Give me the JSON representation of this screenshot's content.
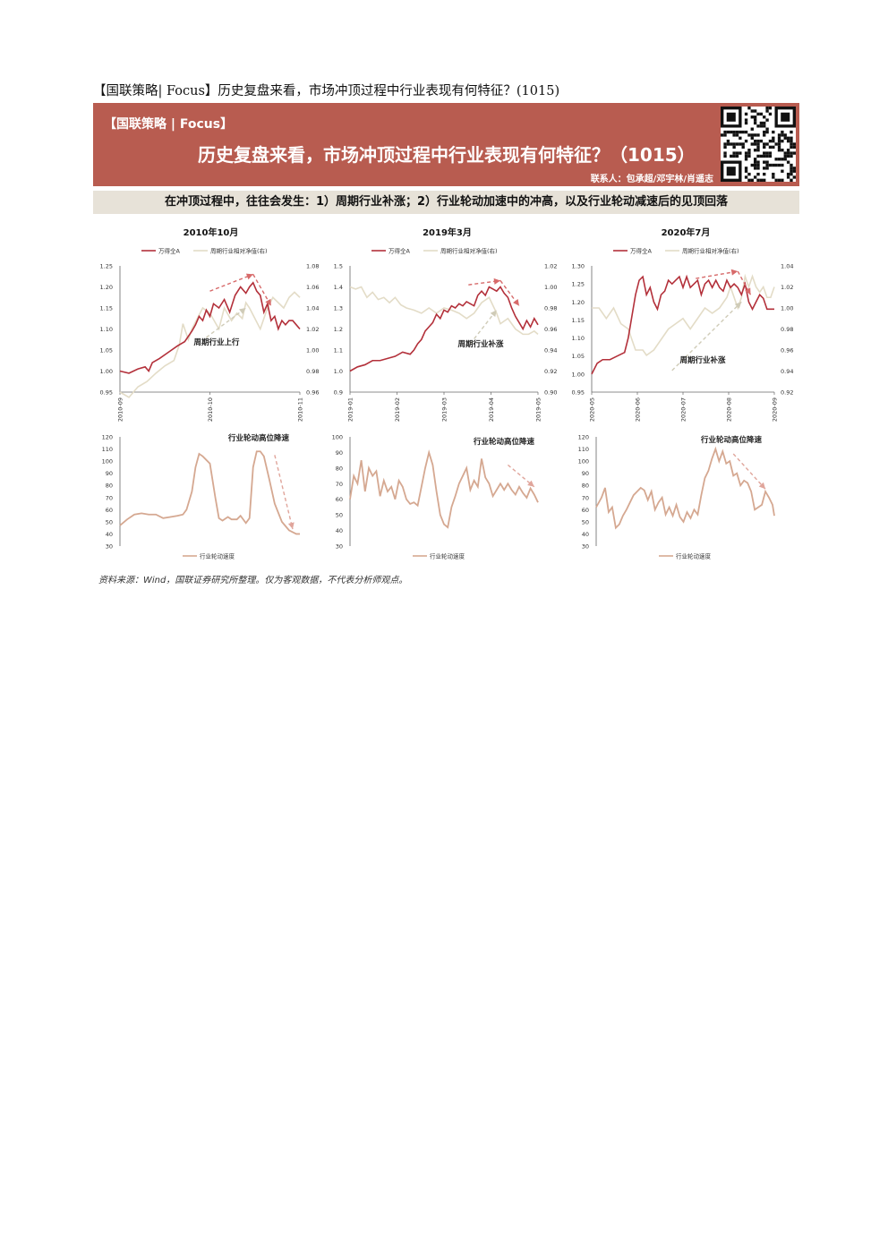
{
  "doc_title": "【国联策略| Focus】历史复盘来看，市场冲顶过程中行业表现有何特征？(1015)",
  "banner": {
    "tag": "【国联策略 | Focus】",
    "headline": "历史复盘来看，市场冲顶过程中行业表现有何特征？（1015）",
    "contacts": "联系人：包承超/邓宇林/肖遥志"
  },
  "subhead": "在冲顶过程中，往往会发生：1）周期行业补涨；2）行业轮动加速中的冲高，以及行业轮动减速后的见顶回落",
  "panels": [
    {
      "title": "2010年10月",
      "top_annotation": "周期行业上行",
      "bottom_annotation": "行业轮动高位降速"
    },
    {
      "title": "2019年3月",
      "top_annotation": "周期行业补涨",
      "bottom_annotation": "行业轮动高位降速"
    },
    {
      "title": "2020年7月",
      "top_annotation": "周期行业补涨",
      "bottom_annotation": "行业轮动高位降速"
    }
  ],
  "legend": {
    "wind_all_a": "万得全A",
    "cyclical_rel": "周期行业相对净值(右)",
    "rotation_speed": "行业轮动速度"
  },
  "colors": {
    "banner": "#b85c50",
    "wind_all_a": "#b3303a",
    "cyclical_rel": "#e3dcc7",
    "rotation_speed": "#d5a891",
    "subhead_bg": "#e7e2d8"
  },
  "source_note": "资料来源：Wind，国联证券研究所整理。仅为客观数据，不代表分析师观点。",
  "chart_data": [
    {
      "type": "line",
      "panel": "2010年10月",
      "x_ticks": [
        "2010-09",
        "2010-10",
        "2010-11"
      ],
      "ylim": [
        0.95,
        1.25
      ],
      "y_ticks": [
        "0.95",
        "1.00",
        "1.05",
        "1.10",
        "1.15",
        "1.20",
        "1.25"
      ],
      "y2lim": [
        0.96,
        1.08
      ],
      "y2_ticks": [
        "0.96",
        "0.98",
        "1.00",
        "1.02",
        "1.04",
        "1.06",
        "1.08"
      ],
      "x_range": [
        0,
        100
      ],
      "series": [
        {
          "name": "万得全A",
          "axis": "left",
          "x": [
            0,
            5,
            10,
            14,
            16,
            18,
            22,
            27,
            32,
            36,
            40,
            42,
            44,
            46,
            48,
            50,
            52,
            55,
            58,
            61,
            64,
            67,
            70,
            72,
            74,
            76,
            78,
            80,
            82,
            84,
            86,
            88,
            90,
            92,
            94,
            96,
            98,
            100
          ],
          "y": [
            1.0,
            0.995,
            1.005,
            1.01,
            1.0,
            1.02,
            1.03,
            1.045,
            1.06,
            1.07,
            1.095,
            1.11,
            1.13,
            1.12,
            1.145,
            1.13,
            1.16,
            1.15,
            1.17,
            1.14,
            1.18,
            1.2,
            1.185,
            1.2,
            1.21,
            1.19,
            1.18,
            1.14,
            1.16,
            1.12,
            1.13,
            1.1,
            1.12,
            1.11,
            1.12,
            1.12,
            1.11,
            1.1
          ]
        },
        {
          "name": "周期行业相对净值(右)",
          "axis": "right",
          "x": [
            0,
            5,
            10,
            15,
            20,
            25,
            30,
            33,
            35,
            38,
            40,
            43,
            46,
            50,
            55,
            58,
            62,
            65,
            68,
            70,
            72,
            75,
            78,
            80,
            82,
            85,
            88,
            91,
            94,
            97,
            100
          ],
          "y": [
            0.96,
            0.955,
            0.965,
            0.97,
            0.978,
            0.985,
            0.99,
            1.005,
            1.025,
            1.01,
            1.02,
            1.03,
            1.04,
            1.035,
            1.02,
            1.04,
            1.028,
            1.035,
            1.03,
            1.045,
            1.04,
            1.03,
            1.02,
            1.03,
            1.04,
            1.05,
            1.045,
            1.04,
            1.05,
            1.055,
            1.05
          ]
        }
      ],
      "annotation": "周期行业上行"
    },
    {
      "type": "line",
      "panel": "2010年10月 行业轮动",
      "ylim": [
        30,
        120
      ],
      "y_ticks": [
        "30",
        "40",
        "50",
        "60",
        "70",
        "80",
        "90",
        "100",
        "110",
        "120"
      ],
      "x_range": [
        0,
        100
      ],
      "series": [
        {
          "name": "行业轮动速度",
          "x": [
            0,
            4,
            8,
            12,
            16,
            20,
            24,
            28,
            32,
            35,
            37,
            40,
            42,
            44,
            46,
            50,
            53,
            55,
            57,
            60,
            62,
            65,
            67,
            70,
            72,
            74,
            76,
            78,
            80,
            83,
            86,
            90,
            94,
            98,
            100
          ],
          "y": [
            47,
            52,
            56,
            57,
            56,
            56,
            53,
            54,
            55,
            56,
            60,
            75,
            95,
            106,
            104,
            98,
            70,
            53,
            51,
            54,
            52,
            52,
            55,
            49,
            53,
            95,
            108,
            108,
            104,
            85,
            65,
            50,
            43,
            40,
            40
          ]
        }
      ],
      "annotation": "行业轮动高位降速"
    },
    {
      "type": "line",
      "panel": "2019年3月",
      "x_ticks": [
        "2019-01",
        "2019-02",
        "2019-03",
        "2019-04",
        "2019-05"
      ],
      "ylim": [
        0.9,
        1.5
      ],
      "y_ticks": [
        "0.9",
        "1.0",
        "1.1",
        "1.2",
        "1.3",
        "1.4",
        "1.5"
      ],
      "y2lim": [
        0.9,
        1.02
      ],
      "y2_ticks": [
        "0.90",
        "0.92",
        "0.94",
        "0.96",
        "0.98",
        "1.00",
        "1.02"
      ],
      "x_range": [
        0,
        100
      ],
      "series": [
        {
          "name": "万得全A",
          "axis": "left",
          "x": [
            0,
            4,
            8,
            12,
            16,
            20,
            24,
            28,
            32,
            34,
            36,
            38,
            40,
            42,
            44,
            46,
            48,
            50,
            52,
            54,
            56,
            58,
            60,
            62,
            64,
            66,
            68,
            70,
            72,
            74,
            76,
            78,
            80,
            82,
            84,
            86,
            88,
            90,
            92,
            94,
            96,
            98,
            100
          ],
          "y": [
            1.0,
            1.02,
            1.03,
            1.05,
            1.05,
            1.06,
            1.07,
            1.09,
            1.08,
            1.1,
            1.13,
            1.15,
            1.19,
            1.21,
            1.23,
            1.27,
            1.25,
            1.29,
            1.28,
            1.31,
            1.3,
            1.32,
            1.31,
            1.33,
            1.32,
            1.31,
            1.36,
            1.38,
            1.36,
            1.4,
            1.39,
            1.38,
            1.4,
            1.37,
            1.35,
            1.3,
            1.26,
            1.23,
            1.2,
            1.24,
            1.21,
            1.25,
            1.22
          ]
        },
        {
          "name": "周期行业相对净值(右)",
          "axis": "right",
          "x": [
            0,
            3,
            6,
            9,
            12,
            15,
            18,
            21,
            24,
            27,
            30,
            34,
            38,
            42,
            46,
            50,
            54,
            58,
            62,
            66,
            70,
            74,
            78,
            80,
            84,
            88,
            92,
            95,
            98,
            100
          ],
          "y": [
            1.0,
            0.998,
            1.0,
            0.99,
            0.995,
            0.988,
            0.99,
            0.985,
            0.99,
            0.983,
            0.98,
            0.978,
            0.975,
            0.98,
            0.975,
            0.98,
            0.978,
            0.975,
            0.97,
            0.975,
            0.985,
            0.99,
            0.975,
            0.965,
            0.97,
            0.96,
            0.955,
            0.955,
            0.958,
            0.955
          ]
        }
      ],
      "annotation": "周期行业补涨"
    },
    {
      "type": "line",
      "panel": "2019年3月 行业轮动",
      "ylim": [
        30,
        100
      ],
      "y_ticks": [
        "30",
        "40",
        "50",
        "60",
        "70",
        "80",
        "90",
        "100"
      ],
      "x_range": [
        0,
        100
      ],
      "series": [
        {
          "name": "行业轮动速度",
          "x": [
            0,
            2,
            4,
            6,
            8,
            10,
            12,
            14,
            16,
            18,
            20,
            22,
            24,
            26,
            28,
            30,
            32,
            34,
            36,
            38,
            40,
            42,
            44,
            46,
            48,
            50,
            52,
            54,
            56,
            58,
            60,
            62,
            64,
            66,
            68,
            70,
            72,
            74,
            76,
            78,
            80,
            82,
            84,
            86,
            88,
            90,
            92,
            94,
            96,
            98,
            100
          ],
          "y": [
            60,
            75,
            70,
            85,
            65,
            80,
            75,
            78,
            62,
            72,
            65,
            68,
            60,
            72,
            68,
            60,
            57,
            58,
            56,
            68,
            80,
            90,
            82,
            65,
            50,
            44,
            42,
            55,
            62,
            70,
            75,
            80,
            66,
            72,
            68,
            86,
            74,
            70,
            62,
            66,
            70,
            66,
            70,
            66,
            63,
            68,
            64,
            61,
            67,
            63,
            58
          ]
        }
      ],
      "annotation": "行业轮动高位降速"
    },
    {
      "type": "line",
      "panel": "2020年7月",
      "x_ticks": [
        "2020-05",
        "2020-06",
        "2020-07",
        "2020-08",
        "2020-09"
      ],
      "ylim": [
        0.95,
        1.3
      ],
      "y_ticks": [
        "0.95",
        "1.00",
        "1.05",
        "1.10",
        "1.15",
        "1.20",
        "1.25",
        "1.30"
      ],
      "y2lim": [
        0.92,
        1.04
      ],
      "y2_ticks": [
        "0.92",
        "0.94",
        "0.96",
        "0.98",
        "1.00",
        "1.02",
        "1.04"
      ],
      "x_range": [
        0,
        100
      ],
      "series": [
        {
          "name": "万得全A",
          "axis": "left",
          "x": [
            0,
            3,
            6,
            10,
            14,
            18,
            20,
            22,
            24,
            26,
            28,
            30,
            32,
            34,
            36,
            38,
            40,
            42,
            44,
            46,
            48,
            50,
            52,
            54,
            56,
            58,
            60,
            62,
            64,
            66,
            68,
            70,
            72,
            74,
            76,
            78,
            80,
            82,
            84,
            86,
            88,
            90,
            92,
            94,
            96,
            98,
            100
          ],
          "y": [
            1.0,
            1.03,
            1.04,
            1.04,
            1.05,
            1.06,
            1.1,
            1.16,
            1.22,
            1.26,
            1.27,
            1.22,
            1.24,
            1.2,
            1.18,
            1.22,
            1.23,
            1.26,
            1.25,
            1.26,
            1.27,
            1.24,
            1.27,
            1.24,
            1.25,
            1.26,
            1.22,
            1.25,
            1.26,
            1.24,
            1.26,
            1.24,
            1.23,
            1.26,
            1.24,
            1.25,
            1.24,
            1.22,
            1.25,
            1.2,
            1.18,
            1.2,
            1.22,
            1.21,
            1.18,
            1.18,
            1.18
          ]
        },
        {
          "name": "周期行业相对净值(右)",
          "axis": "right",
          "x": [
            0,
            4,
            8,
            12,
            16,
            20,
            24,
            28,
            30,
            34,
            38,
            42,
            46,
            50,
            54,
            58,
            62,
            66,
            70,
            74,
            76,
            80,
            82,
            84,
            86,
            88,
            90,
            92,
            94,
            96,
            98,
            100
          ],
          "y": [
            1.0,
            1.0,
            0.99,
            1.0,
            0.985,
            0.98,
            0.96,
            0.96,
            0.955,
            0.96,
            0.97,
            0.98,
            0.985,
            0.99,
            0.98,
            0.99,
            1.0,
            0.995,
            1.0,
            1.01,
            1.02,
            1.0,
            1.01,
            1.03,
            1.02,
            1.03,
            1.02,
            1.015,
            1.02,
            1.01,
            1.01,
            1.02
          ]
        }
      ],
      "annotation": "周期行业补涨"
    },
    {
      "type": "line",
      "panel": "2020年7月 行业轮动",
      "ylim": [
        30,
        120
      ],
      "y_ticks": [
        "30",
        "40",
        "50",
        "60",
        "70",
        "80",
        "90",
        "100",
        "110",
        "120"
      ],
      "x_range": [
        0,
        100
      ],
      "series": [
        {
          "name": "行业轮动速度",
          "x": [
            0,
            3,
            5,
            7,
            9,
            11,
            13,
            15,
            17,
            19,
            21,
            23,
            25,
            27,
            29,
            31,
            33,
            35,
            37,
            39,
            41,
            43,
            45,
            47,
            49,
            51,
            53,
            55,
            57,
            59,
            61,
            63,
            65,
            67,
            69,
            71,
            73,
            75,
            77,
            79,
            81,
            83,
            85,
            87,
            89,
            91,
            93,
            95,
            97,
            99,
            100
          ],
          "y": [
            62,
            70,
            78,
            58,
            62,
            45,
            48,
            55,
            60,
            66,
            72,
            75,
            78,
            76,
            68,
            75,
            60,
            66,
            70,
            56,
            62,
            55,
            64,
            54,
            50,
            58,
            53,
            60,
            56,
            72,
            86,
            92,
            102,
            110,
            100,
            108,
            98,
            100,
            88,
            90,
            80,
            84,
            82,
            75,
            60,
            62,
            64,
            75,
            70,
            64,
            55
          ]
        }
      ],
      "annotation": "行业轮动高位降速"
    }
  ]
}
